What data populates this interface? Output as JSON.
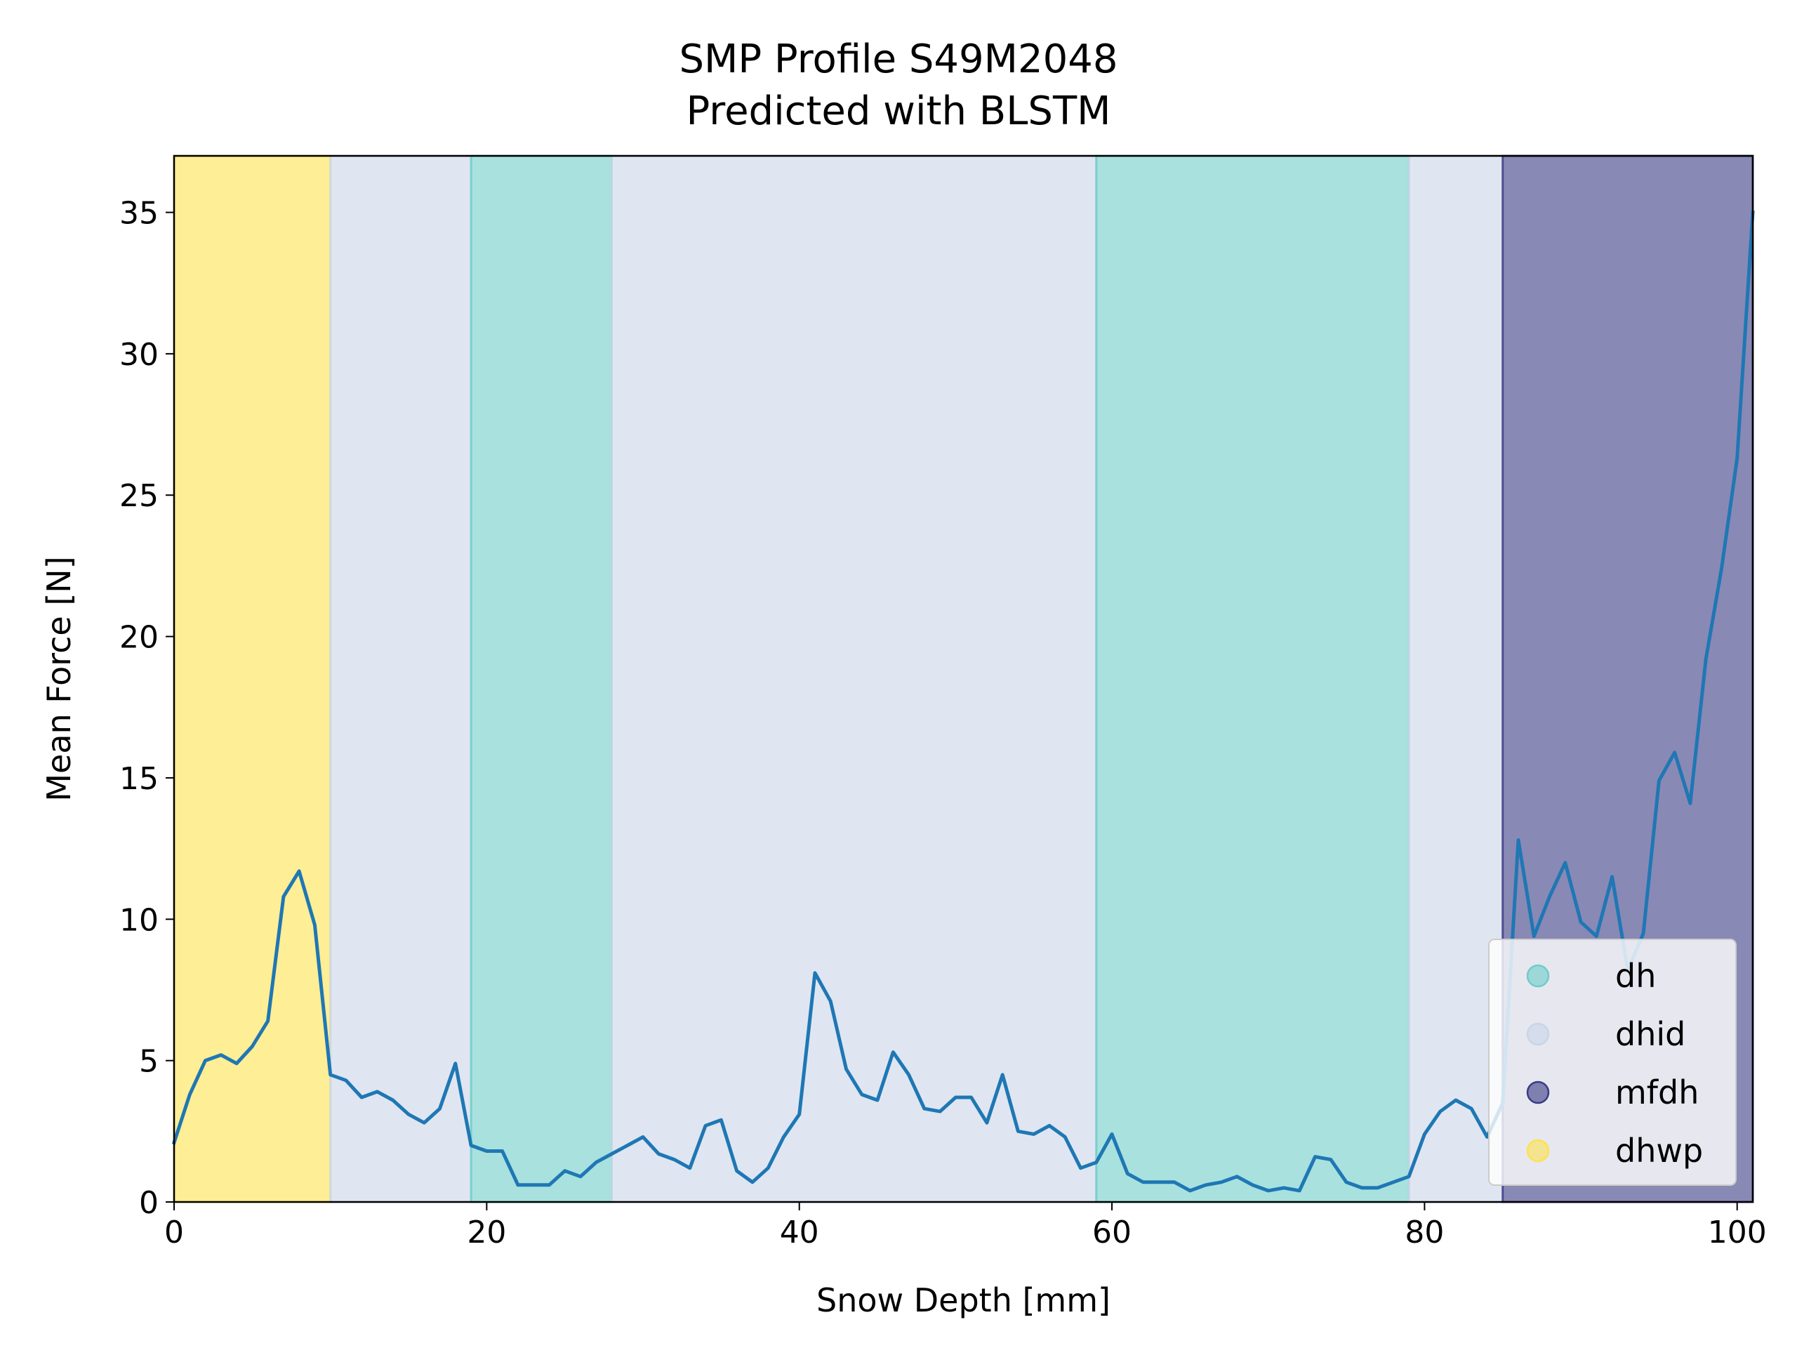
{
  "chart_data": {
    "type": "line",
    "title": [
      "SMP Profile S49M2048",
      "Predicted with BLSTM"
    ],
    "xlabel": "Snow Depth [mm]",
    "ylabel": "Mean Force [N]",
    "xlim": [
      0,
      101
    ],
    "ylim": [
      0,
      37
    ],
    "xticks": [
      0,
      20,
      40,
      60,
      80,
      100
    ],
    "yticks": [
      0,
      5,
      10,
      15,
      20,
      25,
      30,
      35
    ],
    "grid": false,
    "legend_position": "lower-right",
    "line_color": "#1f77b4",
    "bands": [
      {
        "label": "dhwp",
        "x0": 0,
        "x1": 10,
        "color": "#fde24f"
      },
      {
        "label": "dhid",
        "x0": 10,
        "x1": 19,
        "color": "#c9d6e8"
      },
      {
        "label": "dh",
        "x0": 19,
        "x1": 28,
        "color": "#6ecdc8"
      },
      {
        "label": "dhid",
        "x0": 28,
        "x1": 59,
        "color": "#c9d6e8"
      },
      {
        "label": "dh",
        "x0": 59,
        "x1": 79,
        "color": "#6ecdc8"
      },
      {
        "label": "dhid",
        "x0": 79,
        "x1": 85,
        "color": "#c9d6e8"
      },
      {
        "label": "mfdh",
        "x0": 85,
        "x1": 101,
        "color": "#3b3a86"
      }
    ],
    "legend": [
      {
        "label": "dh",
        "color": "#6ecdc8"
      },
      {
        "label": "dhid",
        "color": "#c9d6e8"
      },
      {
        "label": "mfdh",
        "color": "#3b3a86"
      },
      {
        "label": "dhwp",
        "color": "#fde24f"
      }
    ],
    "series": [
      {
        "x": [
          0,
          1,
          2,
          3,
          4,
          5,
          6,
          7,
          8,
          9,
          10,
          11,
          12,
          13,
          14,
          15,
          16,
          17,
          18,
          19,
          20,
          21,
          22,
          23,
          24,
          25,
          26,
          27,
          28,
          29,
          30,
          31,
          32,
          33,
          34,
          35,
          36,
          37,
          38,
          39,
          40,
          41,
          42,
          43,
          44,
          45,
          46,
          47,
          48,
          49,
          50,
          51,
          52,
          53,
          54,
          55,
          56,
          57,
          58,
          59,
          60,
          61,
          62,
          63,
          64,
          65,
          66,
          67,
          68,
          69,
          70,
          71,
          72,
          73,
          74,
          75,
          76,
          77,
          78,
          79,
          80,
          81,
          82,
          83,
          84,
          85,
          86,
          87,
          88,
          89,
          90,
          91,
          92,
          93,
          94,
          95,
          96,
          97,
          98,
          99,
          100,
          101
        ],
        "y": [
          2.1,
          3.8,
          5.0,
          5.2,
          4.9,
          5.5,
          6.4,
          10.8,
          11.7,
          9.8,
          4.5,
          4.3,
          3.7,
          3.9,
          3.6,
          3.1,
          2.8,
          3.3,
          4.9,
          2.0,
          1.8,
          1.8,
          0.6,
          0.6,
          0.6,
          1.1,
          0.9,
          1.4,
          1.7,
          2.0,
          2.3,
          1.7,
          1.5,
          1.2,
          2.7,
          2.9,
          1.1,
          0.7,
          1.2,
          2.3,
          3.1,
          8.1,
          7.1,
          4.7,
          3.8,
          3.6,
          5.3,
          4.5,
          3.3,
          3.2,
          3.7,
          3.7,
          2.8,
          4.5,
          2.5,
          2.4,
          2.7,
          2.3,
          1.2,
          1.4,
          2.4,
          1.0,
          0.7,
          0.7,
          0.7,
          0.4,
          0.6,
          0.7,
          0.9,
          0.6,
          0.4,
          0.5,
          0.4,
          1.6,
          1.5,
          0.7,
          0.5,
          0.5,
          0.7,
          0.9,
          2.4,
          3.2,
          3.6,
          3.3,
          2.3,
          3.5,
          12.8,
          9.4,
          10.8,
          12.0,
          9.9,
          9.4,
          11.5,
          8.2,
          9.5,
          14.9,
          15.9,
          14.1,
          19.2,
          22.4,
          26.3,
          35.0
        ]
      }
    ]
  }
}
